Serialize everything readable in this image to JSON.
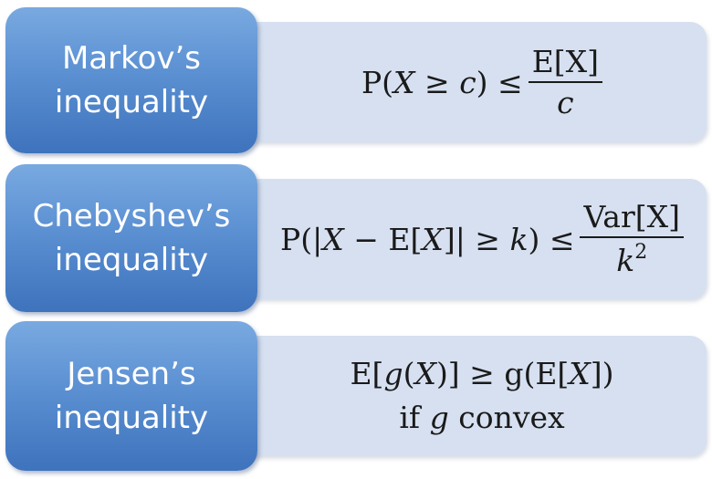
{
  "rows": [
    {
      "label_line1": "Markov’s",
      "label_line2": "inequality",
      "formula_lhs": "P(",
      "formula_var": "X",
      "formula_op": " ≥ ",
      "formula_c": "c",
      "formula_close": ") ≤",
      "numerator": "E[X]",
      "denominator": "c"
    },
    {
      "label_line1": "Chebyshev’s",
      "label_line2": "inequality",
      "formula_lhs": "P(|",
      "formula_var": "X",
      "formula_mid": " − E[",
      "formula_var2": "X",
      "formula_after": "]| ≥ ",
      "formula_k": "k",
      "formula_close": ") ≤",
      "numerator": "Var[X]",
      "denominator_base": "k",
      "denominator_exp": "2"
    },
    {
      "label_line1": "Jensen’s",
      "label_line2": "inequality",
      "line1_a": "E[",
      "line1_g": "g",
      "line1_b": "(",
      "line1_x": "X",
      "line1_c": ")] ≥ g(E[",
      "line1_x2": "X",
      "line1_d": "])",
      "line2_a": "if ",
      "line2_g": "g",
      "line2_b": " convex"
    }
  ]
}
